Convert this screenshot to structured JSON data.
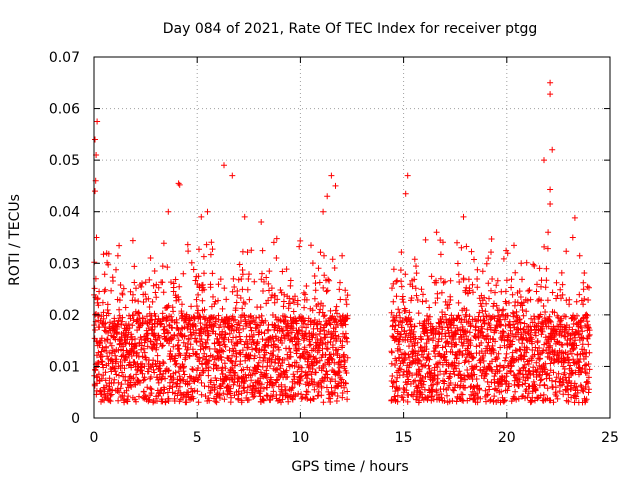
{
  "chart_data": {
    "type": "scatter",
    "title": "Day 084 of 2021, Rate Of TEC Index for receiver ptgg",
    "xlabel": "GPS time / hours",
    "ylabel": "ROTI / TECUs",
    "xlim": [
      0,
      25
    ],
    "ylim": [
      0,
      0.07
    ],
    "x_ticks": [
      "0",
      "5",
      "10",
      "15",
      "20",
      "25"
    ],
    "y_ticks": [
      "0",
      "0.01",
      "0.02",
      "0.03",
      "0.04",
      "0.05",
      "0.06",
      "0.07"
    ],
    "grid": true,
    "marker": "plus",
    "color": "#ff0000",
    "data_gap_hours": [
      12.3,
      14.4
    ],
    "point_density": {
      "description": "dense band of ROTI values across the observed intervals",
      "time_ranges_hours": [
        [
          0,
          12.3
        ],
        [
          14.4,
          24.0
        ]
      ],
      "typical_range": [
        0.003,
        0.02
      ],
      "lower_bound": 0.002
    },
    "notable_points": [
      {
        "x": 0.05,
        "y": 0.054
      },
      {
        "x": 0.1,
        "y": 0.051
      },
      {
        "x": 0.15,
        "y": 0.0575
      },
      {
        "x": 0.08,
        "y": 0.046
      },
      {
        "x": 0.05,
        "y": 0.044
      },
      {
        "x": 0.12,
        "y": 0.035
      },
      {
        "x": 4.1,
        "y": 0.0455
      },
      {
        "x": 4.15,
        "y": 0.0452
      },
      {
        "x": 6.3,
        "y": 0.049
      },
      {
        "x": 6.7,
        "y": 0.047
      },
      {
        "x": 5.2,
        "y": 0.039
      },
      {
        "x": 5.5,
        "y": 0.04
      },
      {
        "x": 7.3,
        "y": 0.039
      },
      {
        "x": 3.6,
        "y": 0.04
      },
      {
        "x": 11.5,
        "y": 0.047
      },
      {
        "x": 11.3,
        "y": 0.043
      },
      {
        "x": 11.7,
        "y": 0.045
      },
      {
        "x": 11.1,
        "y": 0.04
      },
      {
        "x": 8.1,
        "y": 0.038
      },
      {
        "x": 15.2,
        "y": 0.047
      },
      {
        "x": 15.1,
        "y": 0.0435
      },
      {
        "x": 16.6,
        "y": 0.036
      },
      {
        "x": 17.9,
        "y": 0.039
      },
      {
        "x": 17.8,
        "y": 0.033
      },
      {
        "x": 22.1,
        "y": 0.065
      },
      {
        "x": 22.1,
        "y": 0.0628
      },
      {
        "x": 22.2,
        "y": 0.052
      },
      {
        "x": 21.8,
        "y": 0.05
      },
      {
        "x": 22.1,
        "y": 0.0415
      },
      {
        "x": 22.1,
        "y": 0.0443
      },
      {
        "x": 22.0,
        "y": 0.036
      },
      {
        "x": 23.3,
        "y": 0.0388
      },
      {
        "x": 23.2,
        "y": 0.035
      },
      {
        "x": 19.1,
        "y": 0.031
      },
      {
        "x": 20.7,
        "y": 0.03
      }
    ]
  }
}
